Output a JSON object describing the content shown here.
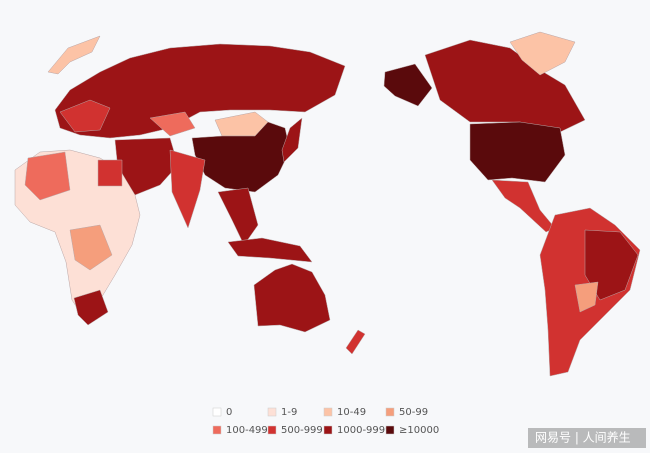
{
  "legend": {
    "items": [
      {
        "label": "0",
        "color": "#ffffff"
      },
      {
        "label": "1-9",
        "color": "#fde0d6"
      },
      {
        "label": "10-49",
        "color": "#fcc3a6"
      },
      {
        "label": "50-99",
        "color": "#f59e7c"
      },
      {
        "label": "100-499",
        "color": "#ee6b5c"
      },
      {
        "label": "500-999",
        "color": "#d13230"
      },
      {
        "label": "1000-9999",
        "color": "#9c1416"
      },
      {
        "label": "≥10000",
        "color": "#5a0a0c"
      }
    ]
  },
  "watermark": "网易号 | 人间养生"
}
